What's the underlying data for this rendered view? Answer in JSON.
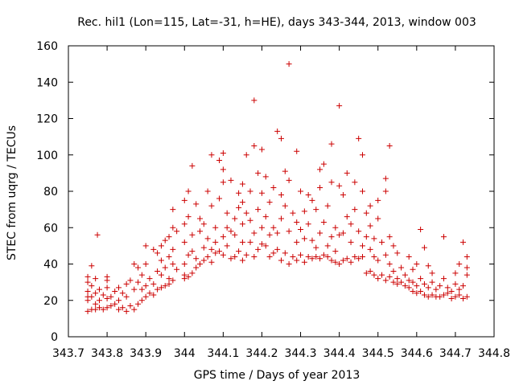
{
  "chart_data": {
    "type": "scatter",
    "title": "Rec. hil1 (Lon=115, Lat=-31, h=HE), days 343-344, 2013, window 003",
    "xlabel": "GPS time / Days of year 2013",
    "ylabel": "STEC from uqrg / TECUs",
    "xlim": [
      343.7,
      344.8
    ],
    "ylim": [
      0,
      160
    ],
    "x_ticks": [
      "343.7",
      "343.8",
      "343.9",
      "344",
      "344.1",
      "344.2",
      "344.3",
      "344.4",
      "344.5",
      "344.6",
      "344.7",
      "344.8"
    ],
    "y_ticks": [
      "0",
      "20",
      "40",
      "60",
      "80",
      "100",
      "120",
      "140",
      "160"
    ],
    "grid": false,
    "marker": "plus",
    "color": "#cc0000",
    "series": [
      {
        "points": [
          [
            343.75,
            14
          ],
          [
            343.75,
            20
          ],
          [
            343.75,
            22
          ],
          [
            343.75,
            25
          ],
          [
            343.75,
            30
          ],
          [
            343.75,
            33
          ],
          [
            343.76,
            15
          ],
          [
            343.76,
            22
          ],
          [
            343.76,
            28
          ],
          [
            343.76,
            39
          ],
          [
            343.77,
            15
          ],
          [
            343.77,
            18
          ],
          [
            343.77,
            24
          ],
          [
            343.77,
            32
          ],
          [
            343.775,
            56
          ],
          [
            343.78,
            16
          ],
          [
            343.78,
            20
          ],
          [
            343.78,
            26
          ],
          [
            343.79,
            15
          ],
          [
            343.79,
            23
          ],
          [
            343.8,
            16
          ],
          [
            343.8,
            21
          ],
          [
            343.8,
            27
          ],
          [
            343.8,
            31
          ],
          [
            343.8,
            33
          ],
          [
            343.81,
            17
          ],
          [
            343.81,
            22
          ],
          [
            343.82,
            18
          ],
          [
            343.82,
            25
          ],
          [
            343.83,
            15
          ],
          [
            343.83,
            20
          ],
          [
            343.83,
            27
          ],
          [
            343.84,
            16
          ],
          [
            343.84,
            24
          ],
          [
            343.85,
            14
          ],
          [
            343.85,
            22
          ],
          [
            343.85,
            29
          ],
          [
            343.86,
            17
          ],
          [
            343.86,
            31
          ],
          [
            343.87,
            15
          ],
          [
            343.87,
            26
          ],
          [
            343.87,
            40
          ],
          [
            343.88,
            18
          ],
          [
            343.88,
            30
          ],
          [
            343.88,
            38
          ],
          [
            343.89,
            20
          ],
          [
            343.89,
            26
          ],
          [
            343.89,
            34
          ],
          [
            343.9,
            22
          ],
          [
            343.9,
            28
          ],
          [
            343.9,
            40
          ],
          [
            343.9,
            50
          ],
          [
            343.91,
            24
          ],
          [
            343.91,
            32
          ],
          [
            343.92,
            23
          ],
          [
            343.92,
            29
          ],
          [
            343.92,
            48
          ],
          [
            343.93,
            26
          ],
          [
            343.93,
            36
          ],
          [
            343.93,
            46
          ],
          [
            343.94,
            27
          ],
          [
            343.94,
            34
          ],
          [
            343.94,
            42
          ],
          [
            343.94,
            50
          ],
          [
            343.95,
            28
          ],
          [
            343.95,
            38
          ],
          [
            343.95,
            53
          ],
          [
            343.96,
            29
          ],
          [
            343.96,
            32
          ],
          [
            343.96,
            44
          ],
          [
            343.96,
            55
          ],
          [
            343.97,
            31
          ],
          [
            343.97,
            40
          ],
          [
            343.97,
            48
          ],
          [
            343.97,
            60
          ],
          [
            343.97,
            70
          ],
          [
            343.98,
            37
          ],
          [
            343.98,
            58
          ],
          [
            344.0,
            32
          ],
          [
            344.0,
            34
          ],
          [
            344.0,
            40
          ],
          [
            344.0,
            52
          ],
          [
            344.0,
            62
          ],
          [
            344.0,
            75
          ],
          [
            344.01,
            33
          ],
          [
            344.01,
            45
          ],
          [
            344.01,
            66
          ],
          [
            344.01,
            80
          ],
          [
            344.02,
            35
          ],
          [
            344.02,
            47
          ],
          [
            344.02,
            94
          ],
          [
            344.02,
            56
          ],
          [
            344.03,
            38
          ],
          [
            344.03,
            43
          ],
          [
            344.03,
            73
          ],
          [
            344.04,
            40
          ],
          [
            344.04,
            58
          ],
          [
            344.04,
            65
          ],
          [
            344.05,
            42
          ],
          [
            344.05,
            49
          ],
          [
            344.05,
            62
          ],
          [
            344.06,
            44
          ],
          [
            344.06,
            54
          ],
          [
            344.06,
            80
          ],
          [
            344.07,
            41
          ],
          [
            344.07,
            48
          ],
          [
            344.07,
            72
          ],
          [
            344.07,
            100
          ],
          [
            344.08,
            46
          ],
          [
            344.08,
            52
          ],
          [
            344.08,
            60
          ],
          [
            344.09,
            47
          ],
          [
            344.09,
            76
          ],
          [
            344.09,
            97
          ],
          [
            344.1,
            45
          ],
          [
            344.1,
            55
          ],
          [
            344.1,
            85
          ],
          [
            344.1,
            92
          ],
          [
            344.1,
            101
          ],
          [
            344.11,
            50
          ],
          [
            344.11,
            60
          ],
          [
            344.11,
            68
          ],
          [
            344.12,
            43
          ],
          [
            344.12,
            58
          ],
          [
            344.12,
            86
          ],
          [
            344.13,
            44
          ],
          [
            344.13,
            56
          ],
          [
            344.13,
            65
          ],
          [
            344.14,
            47
          ],
          [
            344.14,
            71
          ],
          [
            344.14,
            79
          ],
          [
            344.15,
            42
          ],
          [
            344.15,
            52
          ],
          [
            344.15,
            62
          ],
          [
            344.15,
            74
          ],
          [
            344.15,
            84
          ],
          [
            344.16,
            45
          ],
          [
            344.16,
            68
          ],
          [
            344.16,
            100
          ],
          [
            344.17,
            52
          ],
          [
            344.17,
            64
          ],
          [
            344.17,
            80
          ],
          [
            344.18,
            44
          ],
          [
            344.18,
            57
          ],
          [
            344.18,
            105
          ],
          [
            344.18,
            130
          ],
          [
            344.19,
            48
          ],
          [
            344.19,
            70
          ],
          [
            344.19,
            90
          ],
          [
            344.2,
            51
          ],
          [
            344.2,
            60
          ],
          [
            344.2,
            79
          ],
          [
            344.2,
            103
          ],
          [
            344.21,
            50
          ],
          [
            344.21,
            66
          ],
          [
            344.21,
            88
          ],
          [
            344.22,
            44
          ],
          [
            344.22,
            56
          ],
          [
            344.22,
            74
          ],
          [
            344.23,
            46
          ],
          [
            344.23,
            60
          ],
          [
            344.23,
            82
          ],
          [
            344.24,
            48
          ],
          [
            344.24,
            57
          ],
          [
            344.24,
            113
          ],
          [
            344.25,
            42
          ],
          [
            344.25,
            65
          ],
          [
            344.25,
            78
          ],
          [
            344.25,
            109
          ],
          [
            344.26,
            46
          ],
          [
            344.26,
            72
          ],
          [
            344.26,
            91
          ],
          [
            344.27,
            40
          ],
          [
            344.27,
            58
          ],
          [
            344.27,
            150
          ],
          [
            344.27,
            86
          ],
          [
            344.28,
            44
          ],
          [
            344.28,
            68
          ],
          [
            344.29,
            42
          ],
          [
            344.29,
            52
          ],
          [
            344.29,
            63
          ],
          [
            344.29,
            102
          ],
          [
            344.3,
            45
          ],
          [
            344.3,
            59
          ],
          [
            344.3,
            80
          ],
          [
            344.31,
            41
          ],
          [
            344.31,
            54
          ],
          [
            344.31,
            69
          ],
          [
            344.32,
            44
          ],
          [
            344.32,
            62
          ],
          [
            344.32,
            78
          ],
          [
            344.33,
            43
          ],
          [
            344.33,
            53
          ],
          [
            344.33,
            75
          ],
          [
            344.34,
            44
          ],
          [
            344.34,
            49
          ],
          [
            344.34,
            70
          ],
          [
            344.35,
            43
          ],
          [
            344.35,
            57
          ],
          [
            344.35,
            82
          ],
          [
            344.35,
            92
          ],
          [
            344.36,
            45
          ],
          [
            344.36,
            63
          ],
          [
            344.36,
            95
          ],
          [
            344.37,
            44
          ],
          [
            344.37,
            50
          ],
          [
            344.37,
            72
          ],
          [
            344.38,
            42
          ],
          [
            344.38,
            55
          ],
          [
            344.38,
            85
          ],
          [
            344.38,
            106
          ],
          [
            344.39,
            41
          ],
          [
            344.39,
            47
          ],
          [
            344.39,
            60
          ],
          [
            344.4,
            40
          ],
          [
            344.4,
            56
          ],
          [
            344.4,
            83
          ],
          [
            344.4,
            127
          ],
          [
            344.41,
            42
          ],
          [
            344.41,
            57
          ],
          [
            344.41,
            78
          ],
          [
            344.42,
            43
          ],
          [
            344.42,
            66
          ],
          [
            344.42,
            90
          ],
          [
            344.43,
            41
          ],
          [
            344.43,
            52
          ],
          [
            344.43,
            62
          ],
          [
            344.44,
            44
          ],
          [
            344.44,
            70
          ],
          [
            344.44,
            85
          ],
          [
            344.45,
            43
          ],
          [
            344.45,
            58
          ],
          [
            344.45,
            109
          ],
          [
            344.46,
            44
          ],
          [
            344.46,
            50
          ],
          [
            344.46,
            80
          ],
          [
            344.46,
            100
          ],
          [
            344.47,
            35
          ],
          [
            344.47,
            55
          ],
          [
            344.47,
            68
          ],
          [
            344.48,
            36
          ],
          [
            344.48,
            48
          ],
          [
            344.48,
            61
          ],
          [
            344.48,
            72
          ],
          [
            344.49,
            34
          ],
          [
            344.49,
            44
          ],
          [
            344.49,
            54
          ],
          [
            344.5,
            32
          ],
          [
            344.5,
            42
          ],
          [
            344.5,
            65
          ],
          [
            344.5,
            75
          ],
          [
            344.51,
            34
          ],
          [
            344.51,
            52
          ],
          [
            344.52,
            31
          ],
          [
            344.52,
            45
          ],
          [
            344.52,
            80
          ],
          [
            344.52,
            87
          ],
          [
            344.53,
            33
          ],
          [
            344.53,
            40
          ],
          [
            344.53,
            55
          ],
          [
            344.53,
            105
          ],
          [
            344.54,
            30
          ],
          [
            344.54,
            36
          ],
          [
            344.54,
            50
          ],
          [
            344.55,
            29
          ],
          [
            344.55,
            32
          ],
          [
            344.55,
            46
          ],
          [
            344.56,
            30
          ],
          [
            344.56,
            38
          ],
          [
            344.57,
            28
          ],
          [
            344.57,
            34
          ],
          [
            344.58,
            27
          ],
          [
            344.58,
            31
          ],
          [
            344.58,
            44
          ],
          [
            344.59,
            25
          ],
          [
            344.59,
            30
          ],
          [
            344.59,
            37
          ],
          [
            344.6,
            24
          ],
          [
            344.6,
            28
          ],
          [
            344.6,
            40
          ],
          [
            344.61,
            25
          ],
          [
            344.61,
            32
          ],
          [
            344.61,
            59
          ],
          [
            344.62,
            23
          ],
          [
            344.62,
            29
          ],
          [
            344.62,
            49
          ],
          [
            344.63,
            22
          ],
          [
            344.63,
            27
          ],
          [
            344.63,
            39
          ],
          [
            344.64,
            23
          ],
          [
            344.64,
            30
          ],
          [
            344.64,
            35
          ],
          [
            344.65,
            22
          ],
          [
            344.65,
            26
          ],
          [
            344.66,
            22
          ],
          [
            344.66,
            28
          ],
          [
            344.67,
            23
          ],
          [
            344.67,
            32
          ],
          [
            344.67,
            55
          ],
          [
            344.68,
            24
          ],
          [
            344.68,
            27
          ],
          [
            344.69,
            21
          ],
          [
            344.69,
            25
          ],
          [
            344.7,
            22
          ],
          [
            344.7,
            29
          ],
          [
            344.7,
            35
          ],
          [
            344.71,
            23
          ],
          [
            344.71,
            26
          ],
          [
            344.71,
            40
          ],
          [
            344.72,
            21
          ],
          [
            344.72,
            28
          ],
          [
            344.72,
            52
          ],
          [
            344.73,
            22
          ],
          [
            344.73,
            34
          ],
          [
            344.73,
            38
          ],
          [
            344.73,
            44
          ]
        ]
      }
    ]
  }
}
